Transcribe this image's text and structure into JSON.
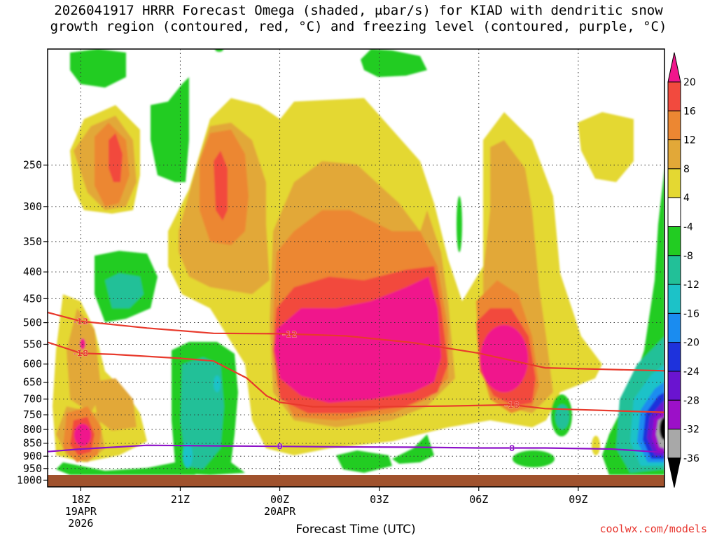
{
  "title_line1": "2026041917 HRRR Forecast Omega (shaded, μbar/s) for KIAD with dendritic snow",
  "title_line2": "growth region (contoured, red, °C) and freezing level (contoured, purple, °C)",
  "xlabel": "Forecast Time (UTC)",
  "credit": "coolwx.com/models",
  "colors": {
    "ground": "#a0522d",
    "dgz_contour": "#e83a2c",
    "freezing_contour": "#8c10c8",
    "grid": "#333333"
  },
  "chart_data": {
    "type": "heatmap",
    "title": "2026041917 HRRR Forecast Omega (shaded, μbar/s) for KIAD with dendritic snow growth region (contoured, red, °C) and freezing level (contoured, purple, °C)",
    "xlabel": "Forecast Time (UTC)",
    "ylabel": "",
    "x_ticks": [
      {
        "hour": 0,
        "label": "18Z",
        "date": "19APR",
        "year": "2026"
      },
      {
        "hour": 3,
        "label": "21Z",
        "date": "",
        "year": ""
      },
      {
        "hour": 6,
        "label": "00Z",
        "date": "20APR",
        "year": ""
      },
      {
        "hour": 9,
        "label": "03Z",
        "date": "",
        "year": ""
      },
      {
        "hour": 12,
        "label": "06Z",
        "date": "",
        "year": ""
      },
      {
        "hour": 15,
        "label": "09Z",
        "date": "",
        "year": ""
      }
    ],
    "xlim": [
      -1,
      17.6
    ],
    "y_ticks": [
      250,
      300,
      350,
      400,
      450,
      500,
      550,
      600,
      650,
      700,
      750,
      800,
      850,
      900,
      950,
      1000
    ],
    "ylim": [
      1030,
      150
    ],
    "y_scale": "log-pressure",
    "grid": true,
    "colorbar": {
      "levels": [
        "20",
        "16",
        "12",
        "8",
        "4",
        "-4",
        "-8",
        "-12",
        "-16",
        "-20",
        "-24",
        "-28",
        "-32",
        "-36"
      ],
      "colors": [
        "#f0168c",
        "#f24a3e",
        "#ec8732",
        "#e2a838",
        "#e4d832",
        "#ffffff",
        "#22cc22",
        "#22c098",
        "#1cc2c8",
        "#1a8cf0",
        "#1e32dc",
        "#6a14d0",
        "#9c10c8",
        "#a8a8a8",
        "#000000"
      ],
      "units": "μbar/s"
    },
    "contours": [
      {
        "name": "-12 °C",
        "label": "-12",
        "color": "#e83a2c",
        "labels_at_hours": [
          0.0,
          6.3
        ],
        "x": [
          -1.0,
          0.0,
          2.0,
          4.0,
          6.0,
          8.0,
          10.0,
          12.0,
          14.0,
          17.6
        ],
        "y": [
          478,
          497,
          512,
          524,
          525,
          530,
          546,
          572,
          610,
          618
        ]
      },
      {
        "name": "-18 °C",
        "label": "-18",
        "color": "#e83a2c",
        "labels_at_hours": [
          0.0,
          13.0
        ],
        "x": [
          -1.0,
          0.0,
          1.0,
          3.0,
          4.0,
          5.0,
          5.6,
          6.0,
          7.0,
          9.0,
          11.0,
          13.0,
          14.0,
          17.6
        ],
        "y": [
          545,
          572,
          575,
          585,
          592,
          638,
          690,
          710,
          724,
          724,
          722,
          718,
          730,
          742
        ]
      },
      {
        "name": "0 °C",
        "label": "0",
        "color": "#8c10c8",
        "labels_at_hours": [
          6.0,
          13.0
        ],
        "x": [
          -1.0,
          0.0,
          2.0,
          4.0,
          6.0,
          8.0,
          10.0,
          12.0,
          14.0,
          16.0,
          17.6
        ],
        "y": [
          882,
          872,
          858,
          860,
          862,
          864,
          865,
          868,
          868,
          872,
          885
        ]
      }
    ]
  }
}
